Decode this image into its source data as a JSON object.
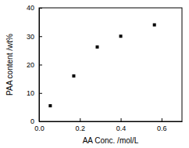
{
  "chart_data": {
    "type": "scatter",
    "x_label": "AA Conc. /mol/L",
    "y_label": "PAA content /wt%",
    "x": [
      0.055,
      0.17,
      0.285,
      0.4,
      0.565
    ],
    "values": [
      5.5,
      16,
      26.2,
      30,
      34
    ],
    "color": "#000000",
    "marker": "square",
    "xlim": [
      0,
      0.7
    ],
    "xticks": [
      {
        "value": 0,
        "label": "0.0"
      },
      {
        "value": 0.2,
        "label": "0.2"
      },
      {
        "value": 0.4,
        "label": "0.4"
      },
      {
        "value": 0.6,
        "label": "0.6"
      }
    ],
    "ylim": [
      0,
      40
    ],
    "yticks": [
      0,
      10,
      20,
      30,
      40
    ],
    "grid": false
  }
}
